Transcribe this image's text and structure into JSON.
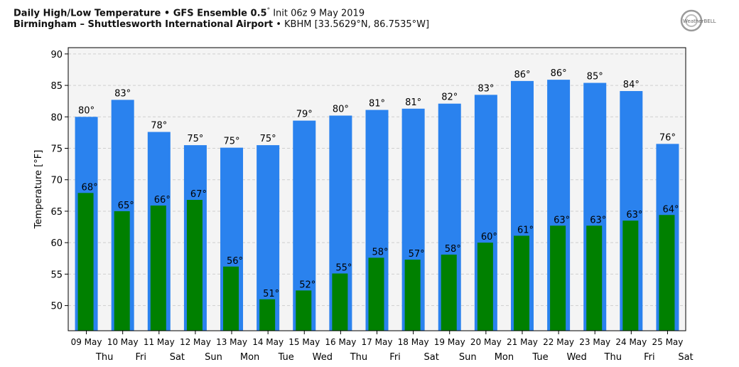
{
  "header": {
    "title_bold": "Daily High/Low Temperature • GFS Ensemble 0.5",
    "title_deg": "°",
    "title_rest": " Init 06z 9 May 2019",
    "location_bold": "Birmingham – Shuttlesworth International Airport",
    "location_rest": " • KBHM [33.5629°N, 86.7535°W]"
  },
  "logo": {
    "text": "WeatherBELL",
    "icon": "weatherbell-logo-icon"
  },
  "colors": {
    "high": "#2a82ee",
    "low": "#008000",
    "plot_bg": "#f4f4f4",
    "grid": "#cfcfcf"
  },
  "chart_data": {
    "type": "bar",
    "ylabel": "Temperature [°F]",
    "ylim": [
      46,
      91
    ],
    "yticks": [
      50,
      55,
      60,
      65,
      70,
      75,
      80,
      85,
      90
    ],
    "grid": true,
    "categories": [
      "09 May",
      "10 May",
      "11 May",
      "12 May",
      "13 May",
      "14 May",
      "15 May",
      "16 May",
      "17 May",
      "18 May",
      "19 May",
      "20 May",
      "21 May",
      "22 May",
      "23 May",
      "24 May",
      "25 May"
    ],
    "weekdays": [
      "",
      "Thu",
      "Fri",
      "Sat",
      "Sun",
      "Mon",
      "Tue",
      "Wed",
      "Thu",
      "Fri",
      "Sat",
      "Sun",
      "Mon",
      "Tue",
      "Wed",
      "Thu",
      "Fri",
      "Sat"
    ],
    "series": [
      {
        "key": "high",
        "values": [
          80,
          82.7,
          77.6,
          75.5,
          75.1,
          75.5,
          79.4,
          80.2,
          81.1,
          81.3,
          82.1,
          83.5,
          85.7,
          85.9,
          85.4,
          84.1,
          75.7
        ],
        "labels": [
          "80°",
          "83°",
          "78°",
          "75°",
          "75°",
          "75°",
          "79°",
          "80°",
          "81°",
          "81°",
          "82°",
          "83°",
          "86°",
          "86°",
          "85°",
          "84°",
          "76°"
        ]
      },
      {
        "key": "low",
        "values": [
          67.9,
          65.0,
          65.9,
          66.8,
          56.2,
          51.0,
          52.4,
          55.1,
          57.6,
          57.3,
          58.1,
          60.0,
          61.1,
          62.7,
          62.7,
          63.5,
          64.4
        ],
        "labels": [
          "68°",
          "65°",
          "66°",
          "67°",
          "56°",
          "51°",
          "52°",
          "55°",
          "58°",
          "57°",
          "58°",
          "60°",
          "61°",
          "63°",
          "63°",
          "63°",
          "64°"
        ]
      }
    ]
  }
}
